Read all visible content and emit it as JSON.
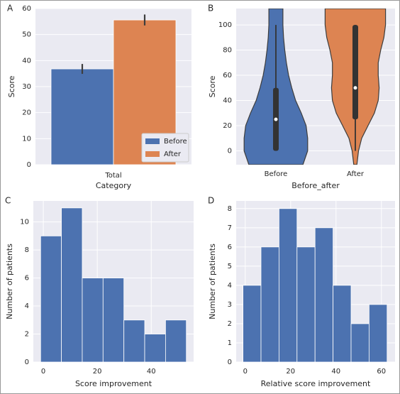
{
  "chart_data": [
    {
      "panel": "A",
      "type": "bar",
      "categories": [
        "Total"
      ],
      "xlabel": "Category",
      "ylabel": "Score",
      "ylim": [
        0,
        60
      ],
      "yticks": [
        0,
        10,
        20,
        30,
        40,
        50,
        60
      ],
      "grid": true,
      "legend": "lower right",
      "series": [
        {
          "name": "Before",
          "color": "#4c72b0",
          "values": [
            36.8
          ],
          "errors": [
            1.9
          ]
        },
        {
          "name": "After",
          "color": "#dd8452",
          "values": [
            55.6
          ],
          "errors": [
            2.1
          ]
        }
      ]
    },
    {
      "panel": "B",
      "type": "violin",
      "categories": [
        "Before",
        "After"
      ],
      "xlabel": "Before_after",
      "ylabel": "Score",
      "ylim": [
        -11,
        113
      ],
      "yticks": [
        0,
        20,
        40,
        60,
        80,
        100
      ],
      "grid": true,
      "density_y": [
        -11,
        0,
        10,
        20,
        30,
        40,
        50,
        60,
        70,
        80,
        90,
        100,
        113
      ],
      "violins": [
        {
          "color": "#4c72b0",
          "density": [
            0.85,
            1.0,
            1.0,
            0.95,
            0.8,
            0.62,
            0.5,
            0.4,
            0.33,
            0.28,
            0.24,
            0.22,
            0.22
          ],
          "whislo": 0,
          "q1": 0,
          "median": 25,
          "q3": 50,
          "whishi": 100
        },
        {
          "color": "#dd8452",
          "density": [
            0.05,
            0.1,
            0.2,
            0.4,
            0.6,
            0.72,
            0.75,
            0.72,
            0.72,
            0.8,
            0.9,
            0.95,
            0.95
          ],
          "whislo": 0,
          "q1": 25,
          "median": 50,
          "q3": 100,
          "whishi": 100
        }
      ]
    },
    {
      "panel": "C",
      "type": "histogram",
      "xlabel": "Score improvement",
      "ylabel": "Number of patients",
      "color": "#4c72b0",
      "bins": [
        -1,
        6.71,
        14.43,
        22.14,
        29.86,
        37.57,
        45.29,
        53
      ],
      "counts": [
        9,
        11,
        6,
        6,
        3,
        2,
        3
      ],
      "xlim": [
        -3.7,
        55.7
      ],
      "xticks": [
        0,
        20,
        40
      ],
      "ylim": [
        0,
        11.5
      ],
      "yticks": [
        0,
        2,
        4,
        6,
        8,
        10
      ],
      "grid": true
    },
    {
      "panel": "D",
      "type": "histogram",
      "xlabel": "Relative score improvement",
      "ylabel": "Number of patients",
      "color": "#4c72b0",
      "bins": [
        -1,
        6.94,
        14.88,
        22.81,
        30.75,
        38.69,
        46.63,
        54.56,
        62.5
      ],
      "counts": [
        4,
        6,
        8,
        6,
        7,
        4,
        2,
        3
      ],
      "xlim": [
        -4,
        66
      ],
      "xticks": [
        0,
        20,
        40,
        60
      ],
      "ylim": [
        0,
        8.4
      ],
      "yticks": [
        0,
        1,
        2,
        3,
        4,
        5,
        6,
        7,
        8
      ],
      "grid": true
    }
  ]
}
